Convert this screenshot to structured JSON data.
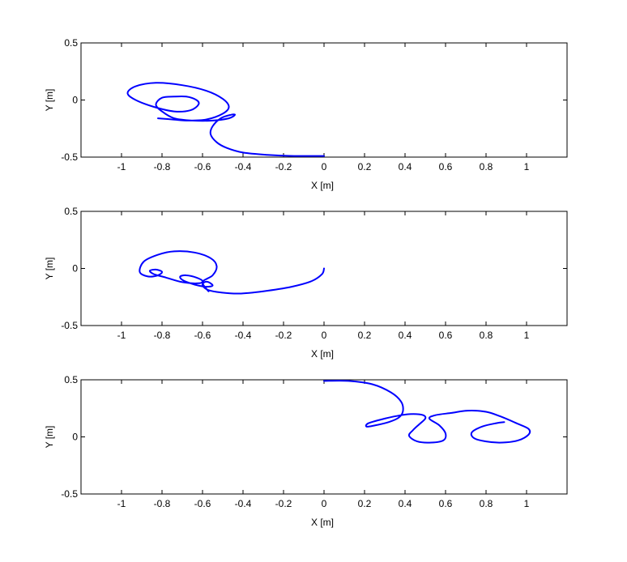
{
  "chart_data": [
    {
      "type": "line",
      "title": "",
      "xlabel": "X [m]",
      "ylabel": "Y [m]",
      "xlim": [
        -1.2,
        1.2
      ],
      "ylim": [
        -0.5,
        0.5
      ],
      "xticks": [
        -1,
        -0.8,
        -0.6,
        -0.4,
        -0.2,
        0,
        0.2,
        0.4,
        0.6,
        0.8,
        1
      ],
      "xtick_labels": [
        "-1",
        "-0.8",
        "-0.6",
        "-0.4",
        "-0.2",
        "0",
        "0.2",
        "0.4",
        "0.6",
        "0.8",
        "1"
      ],
      "yticks": [
        -0.5,
        0,
        0.5
      ],
      "ytick_labels": [
        "-0.5",
        "0",
        "0.5"
      ],
      "grid": false,
      "line_color": "#0000ff",
      "series": [
        {
          "x": [
            0.0,
            -0.15,
            -0.28,
            -0.4,
            -0.48,
            -0.53,
            -0.56,
            -0.55,
            -0.51,
            -0.46,
            -0.44,
            -0.47,
            -0.55,
            -0.65,
            -0.74,
            -0.8,
            -0.83,
            -0.8,
            -0.74,
            -0.68,
            -0.63,
            -0.62,
            -0.66,
            -0.74,
            -0.84,
            -0.93,
            -0.97,
            -0.93,
            -0.83,
            -0.7,
            -0.58,
            -0.5,
            -0.47,
            -0.5,
            -0.58,
            -0.67,
            -0.75,
            -0.82
          ],
          "y": [
            -0.49,
            -0.49,
            -0.48,
            -0.46,
            -0.42,
            -0.37,
            -0.3,
            -0.23,
            -0.16,
            -0.13,
            -0.13,
            -0.16,
            -0.18,
            -0.18,
            -0.16,
            -0.1,
            -0.04,
            0.02,
            0.03,
            0.03,
            0.0,
            -0.04,
            -0.09,
            -0.1,
            -0.06,
            0.0,
            0.06,
            0.12,
            0.15,
            0.13,
            0.08,
            0.01,
            -0.06,
            -0.12,
            -0.17,
            -0.18,
            -0.17,
            -0.16
          ]
        }
      ]
    },
    {
      "type": "line",
      "title": "",
      "xlabel": "X [m]",
      "ylabel": "Y [m]",
      "xlim": [
        -1.2,
        1.2
      ],
      "ylim": [
        -0.5,
        0.5
      ],
      "xticks": [
        -1,
        -0.8,
        -0.6,
        -0.4,
        -0.2,
        0,
        0.2,
        0.4,
        0.6,
        0.8,
        1
      ],
      "xtick_labels": [
        "-1",
        "-0.8",
        "-0.6",
        "-0.4",
        "-0.2",
        "0",
        "0.2",
        "0.4",
        "0.6",
        "0.8",
        "1"
      ],
      "yticks": [
        -0.5,
        0,
        0.5
      ],
      "ytick_labels": [
        "-0.5",
        "0",
        "0.5"
      ],
      "grid": false,
      "line_color": "#0000ff",
      "series": [
        {
          "x": [
            0.0,
            -0.01,
            -0.06,
            -0.16,
            -0.3,
            -0.42,
            -0.51,
            -0.57,
            -0.6,
            -0.59,
            -0.57,
            -0.55,
            -0.58,
            -0.62,
            -0.66,
            -0.7,
            -0.71,
            -0.68,
            -0.63,
            -0.6,
            -0.62,
            -0.7,
            -0.78,
            -0.84,
            -0.86,
            -0.83,
            -0.8,
            -0.82,
            -0.87,
            -0.91,
            -0.89,
            -0.82,
            -0.74,
            -0.64,
            -0.56,
            -0.53,
            -0.55,
            -0.6,
            -0.57,
            -0.59
          ],
          "y": [
            0.0,
            -0.05,
            -0.11,
            -0.16,
            -0.2,
            -0.22,
            -0.21,
            -0.19,
            -0.15,
            -0.12,
            -0.12,
            -0.15,
            -0.16,
            -0.15,
            -0.13,
            -0.1,
            -0.07,
            -0.06,
            -0.08,
            -0.11,
            -0.13,
            -0.12,
            -0.08,
            -0.05,
            -0.02,
            -0.01,
            -0.03,
            -0.06,
            -0.07,
            -0.03,
            0.06,
            0.12,
            0.15,
            0.14,
            0.09,
            0.02,
            -0.06,
            -0.12,
            -0.2,
            -0.16
          ]
        }
      ]
    },
    {
      "type": "line",
      "title": "",
      "xlabel": "X [m]",
      "ylabel": "Y [m]",
      "xlim": [
        -1.2,
        1.2
      ],
      "ylim": [
        -0.5,
        0.5
      ],
      "xticks": [
        -1,
        -0.8,
        -0.6,
        -0.4,
        -0.2,
        0,
        0.2,
        0.4,
        0.6,
        0.8,
        1
      ],
      "xtick_labels": [
        "-1",
        "-0.8",
        "-0.6",
        "-0.4",
        "-0.2",
        "0",
        "0.2",
        "0.4",
        "0.6",
        "0.8",
        "1"
      ],
      "yticks": [
        -0.5,
        0,
        0.5
      ],
      "ytick_labels": [
        "-0.5",
        "0",
        "0.5"
      ],
      "grid": false,
      "line_color": "#0000ff",
      "series": [
        {
          "x": [
            0.0,
            0.12,
            0.24,
            0.33,
            0.38,
            0.39,
            0.37,
            0.32,
            0.25,
            0.21,
            0.22,
            0.3,
            0.38,
            0.44,
            0.49,
            0.5,
            0.47,
            0.44,
            0.42,
            0.46,
            0.53,
            0.59,
            0.6,
            0.57,
            0.52,
            0.55,
            0.63,
            0.71,
            0.8,
            0.87,
            0.95,
            1.01,
            1.01,
            0.96,
            0.88,
            0.8,
            0.74,
            0.73,
            0.78,
            0.85,
            0.89
          ],
          "y": [
            0.49,
            0.49,
            0.46,
            0.39,
            0.31,
            0.23,
            0.17,
            0.13,
            0.1,
            0.09,
            0.12,
            0.16,
            0.19,
            0.2,
            0.19,
            0.16,
            0.11,
            0.06,
            0.01,
            -0.04,
            -0.05,
            -0.03,
            0.03,
            0.1,
            0.16,
            0.19,
            0.21,
            0.23,
            0.22,
            0.18,
            0.12,
            0.07,
            0.02,
            -0.03,
            -0.05,
            -0.04,
            -0.01,
            0.04,
            0.09,
            0.12,
            0.13
          ]
        }
      ]
    }
  ]
}
